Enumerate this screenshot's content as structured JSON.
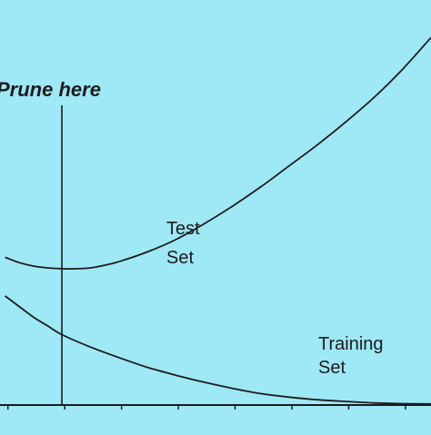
{
  "colors": {
    "background": "#9fe8f6",
    "ink": "#1c1c1c"
  },
  "chart_data": {
    "type": "line",
    "title": "",
    "xlabel": "",
    "ylabel": "",
    "grid": false,
    "legend": "none",
    "annotations": [
      {
        "text": "Prune here",
        "x": 1.0
      }
    ],
    "series": [
      {
        "name": "Test Set",
        "label_lines": [
          "Test",
          "Set"
        ],
        "x": [
          0,
          0.25,
          0.5,
          0.75,
          1,
          1.25,
          1.5,
          1.75,
          2,
          2.5,
          3,
          3.5,
          4,
          4.5,
          5,
          5.5,
          6,
          6.5,
          7,
          7.5
        ],
        "y": [
          8.4,
          8.1,
          7.9,
          7.8,
          7.75,
          7.75,
          7.8,
          7.95,
          8.15,
          8.7,
          9.4,
          10.3,
          11.3,
          12.4,
          13.6,
          14.8,
          16.1,
          17.5,
          19.1,
          20.9
        ]
      },
      {
        "name": "Training Set",
        "label_lines": [
          "Training",
          "Set"
        ],
        "x": [
          0,
          0.25,
          0.5,
          0.75,
          1,
          1.5,
          2,
          2.5,
          3,
          3.5,
          4,
          4.5,
          5,
          5.5,
          6,
          6.5,
          7,
          7.5
        ],
        "y": [
          6.2,
          5.6,
          5.0,
          4.5,
          4.0,
          3.3,
          2.7,
          2.15,
          1.7,
          1.3,
          0.95,
          0.65,
          0.45,
          0.3,
          0.2,
          0.12,
          0.08,
          0.06
        ]
      }
    ]
  }
}
